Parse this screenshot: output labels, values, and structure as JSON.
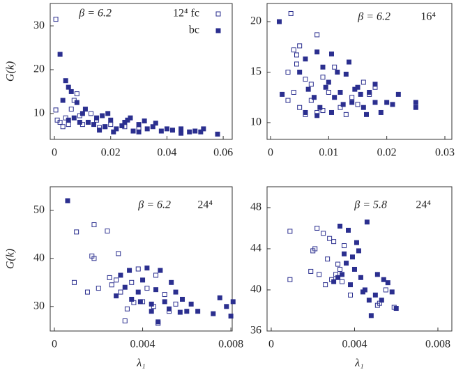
{
  "chart_data": [
    {
      "type": "scatter",
      "annotation": "β = 6.2",
      "ylabel": "G(k)",
      "xlim": [
        -0.0015,
        0.0632
      ],
      "ylim": [
        4.1,
        35.1
      ],
      "xticks": [
        0,
        0.02,
        0.04,
        0.06
      ],
      "yticks": [
        10,
        20,
        30
      ],
      "series": [
        {
          "name": "12⁴ fc",
          "color": "#2b2f8f",
          "marker": "open",
          "x": [
            0.0005,
            0.0005,
            0.001,
            0.008,
            0.007,
            0.004,
            0.003,
            0.01,
            0.012,
            0.015,
            0.018,
            0.02,
            0.006,
            0.002,
            0.009,
            0.025,
            0.03,
            0.005,
            0.013,
            0.016
          ],
          "y": [
            31.5,
            10.8,
            8.5,
            14.5,
            13,
            9,
            7,
            7.5,
            8,
            8.5,
            7,
            7.5,
            11,
            8,
            9.5,
            7,
            6.5,
            7.5,
            10,
            6.8
          ]
        },
        {
          "name": "bc",
          "color": "#2b2f8f",
          "marker": "filled",
          "x": [
            0.002,
            0.004,
            0.005,
            0.006,
            0.003,
            0.008,
            0.01,
            0.015,
            0.02,
            0.025,
            0.03,
            0.035,
            0.04,
            0.045,
            0.05,
            0.052,
            0.058,
            0.012,
            0.018,
            0.022,
            0.028,
            0.033,
            0.038,
            0.042,
            0.048,
            0.007,
            0.009,
            0.014,
            0.017,
            0.024,
            0.03,
            0.036,
            0.011,
            0.019,
            0.027,
            0.032,
            0.005,
            0.016,
            0.021,
            0.026,
            0.053,
            0.045
          ],
          "y": [
            23.5,
            17.5,
            16,
            15,
            13,
            12.5,
            10,
            9,
            8.5,
            8,
            7.5,
            7,
            6.5,
            6.5,
            6,
            5.8,
            5.3,
            8,
            7,
            6.5,
            6,
            6.5,
            6,
            6.2,
            5.8,
            9,
            8,
            7.5,
            9.5,
            7.2,
            5.8,
            7.8,
            11,
            10,
            9,
            8.3,
            8.5,
            6.2,
            5.8,
            8.5,
            6.5,
            5.5
          ]
        }
      ]
    },
    {
      "type": "scatter",
      "annotation": "β = 6.2",
      "lattice": "16⁴",
      "xlim": [
        -0.0006,
        0.0312
      ],
      "ylim": [
        8.34,
        21.8
      ],
      "xticks": [
        0,
        0.01,
        0.02,
        0.03
      ],
      "yticks": [
        10,
        15,
        20
      ],
      "series": [
        {
          "color": "#2b2f8f",
          "marker": "open",
          "x": [
            0.0035,
            0.005,
            0.004,
            0.0045,
            0.008,
            0.003,
            0.006,
            0.004,
            0.005,
            0.007,
            0.009,
            0.01,
            0.012,
            0.014,
            0.016,
            0.018,
            0.006,
            0.008,
            0.011,
            0.013,
            0.015,
            0.003,
            0.0045,
            0.007,
            0.009,
            0.017
          ],
          "y": [
            20.8,
            17.6,
            17.2,
            16.7,
            18.7,
            15,
            14.3,
            13,
            11.5,
            12.2,
            14.5,
            13,
            11.5,
            12.5,
            14,
            13.5,
            10.8,
            11,
            15.5,
            10.8,
            11.8,
            12.2,
            15.8,
            13.8,
            11.2,
            12.8
          ]
        },
        {
          "color": "#2b2f8f",
          "marker": "filled",
          "x": [
            0.0015,
            0.002,
            0.005,
            0.006,
            0.008,
            0.009,
            0.01,
            0.011,
            0.012,
            0.013,
            0.014,
            0.015,
            0.016,
            0.017,
            0.018,
            0.019,
            0.02,
            0.022,
            0.025,
            0.025,
            0.0075,
            0.0085,
            0.0095,
            0.0105,
            0.0115,
            0.0125,
            0.0135,
            0.0145,
            0.0155,
            0.0165,
            0.006,
            0.008,
            0.0105,
            0.018,
            0.021,
            0.0065
          ],
          "y": [
            20,
            12.8,
            15,
            16.3,
            17,
            15.5,
            14,
            12.5,
            13,
            14.8,
            12,
            13.5,
            11.5,
            13,
            12,
            11,
            12,
            12.8,
            12,
            11.5,
            12.5,
            11.5,
            13.5,
            11,
            15,
            11.8,
            16,
            13.3,
            12.8,
            10.8,
            11,
            10.7,
            16.8,
            13.8,
            11.8,
            13.3
          ]
        }
      ]
    },
    {
      "type": "scatter",
      "annotation": "β = 6.2",
      "lattice": "24⁴",
      "ylabel": "G(k)",
      "xlabel": "λ₁",
      "xlim": [
        -0.00019,
        0.00806
      ],
      "ylim": [
        24.9,
        54.9
      ],
      "xticks": [
        0,
        0.004,
        0.008
      ],
      "yticks": [
        30,
        40,
        50
      ],
      "series": [
        {
          "color": "#2b2f8f",
          "marker": "open",
          "x": [
            0.001,
            0.0009,
            0.0018,
            0.0017,
            0.0018,
            0.0024,
            0.0029,
            0.0015,
            0.002,
            0.0025,
            0.003,
            0.0032,
            0.0035,
            0.0038,
            0.004,
            0.0045,
            0.0047,
            0.005,
            0.0055,
            0.0026,
            0.0033,
            0.0042,
            0.0046,
            0.0052,
            0.0036,
            0.0028
          ],
          "y": [
            45.5,
            35,
            47,
            40.5,
            40,
            45.7,
            41,
            33,
            33.8,
            36,
            33,
            27,
            35,
            37.8,
            31,
            30,
            26.5,
            32.5,
            30.5,
            34.5,
            29.5,
            33.8,
            36.5,
            29,
            30.8,
            35.5
          ]
        },
        {
          "color": "#2b2f8f",
          "marker": "filled",
          "x": [
            0.0006,
            0.0028,
            0.003,
            0.0032,
            0.0035,
            0.0038,
            0.004,
            0.0042,
            0.0044,
            0.0046,
            0.0048,
            0.005,
            0.0052,
            0.0055,
            0.0058,
            0.006,
            0.0062,
            0.0065,
            0.0072,
            0.0075,
            0.0078,
            0.008,
            0.0081,
            0.0047,
            0.0039,
            0.0053,
            0.0057,
            0.0044,
            0.0034
          ],
          "y": [
            52,
            32.2,
            36.5,
            34,
            31.5,
            33,
            35.5,
            38,
            30.5,
            33.5,
            37.5,
            31,
            29.5,
            33,
            31.5,
            29,
            30.5,
            29,
            28.5,
            31.8,
            30,
            28,
            31,
            26.8,
            31,
            35,
            28.8,
            29,
            37.5
          ]
        }
      ]
    },
    {
      "type": "scatter",
      "annotation": "β = 5.8",
      "lattice": "24⁴",
      "xlabel": "λ₁",
      "xlim": [
        -0.0002,
        0.00867
      ],
      "ylim": [
        36,
        50.03
      ],
      "xticks": [
        0,
        0.004,
        0.008
      ],
      "yticks": [
        36,
        40,
        44,
        48
      ],
      "series": [
        {
          "color": "#2b2f8f",
          "marker": "open",
          "x": [
            0.0009,
            0.0009,
            0.0022,
            0.0021,
            0.002,
            0.0025,
            0.0027,
            0.0028,
            0.003,
            0.0032,
            0.0033,
            0.0035,
            0.0023,
            0.0026,
            0.0029,
            0.0034,
            0.0031,
            0.0038,
            0.0051,
            0.0052,
            0.0055,
            0.0059,
            0.0019
          ],
          "y": [
            45.7,
            41,
            46,
            44,
            43.8,
            45.5,
            43,
            45,
            44.7,
            42.5,
            42,
            44.3,
            41.5,
            40.5,
            41,
            40.8,
            41.5,
            39.5,
            38.5,
            38.7,
            40,
            38.3,
            41.8
          ]
        },
        {
          "color": "#2b2f8f",
          "marker": "filled",
          "x": [
            0.0033,
            0.0037,
            0.0046,
            0.0042,
            0.0035,
            0.0036,
            0.0032,
            0.003,
            0.0034,
            0.0038,
            0.004,
            0.0043,
            0.0045,
            0.0047,
            0.0048,
            0.005,
            0.0051,
            0.0053,
            0.0054,
            0.0056,
            0.0058,
            0.006,
            0.0044,
            0.0039,
            0.0041
          ],
          "y": [
            46.2,
            45.8,
            46.6,
            43.8,
            43.5,
            42.6,
            41.2,
            40.8,
            41.5,
            40.5,
            42,
            41.2,
            40,
            39,
            37.5,
            39.5,
            41.5,
            39,
            41,
            40.7,
            39.8,
            38.2,
            39.8,
            43.2,
            44.6
          ]
        }
      ]
    }
  ]
}
